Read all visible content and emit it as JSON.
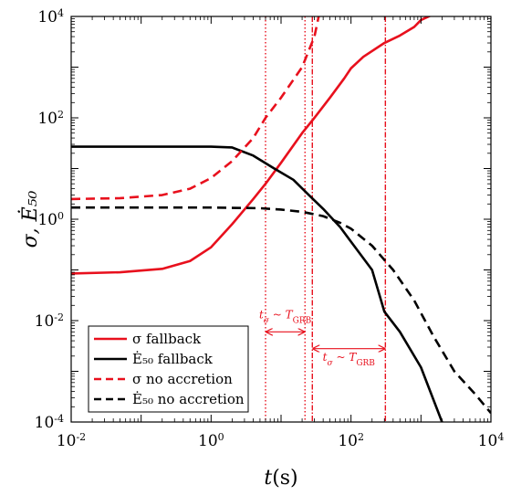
{
  "chart_data": {
    "type": "line",
    "title": "",
    "xlabel": "t(s)",
    "ylabel": "σ, Ė₅₀",
    "x_scale": "log",
    "y_scale": "log",
    "xlim": [
      0.01,
      10000
    ],
    "ylim": [
      0.0001,
      10000
    ],
    "grid": false,
    "legend_position": "bottom-left",
    "x_ticks": [
      {
        "value": 0.01,
        "base": "10",
        "exp": "-2"
      },
      {
        "value": 1,
        "base": "10",
        "exp": "0"
      },
      {
        "value": 100,
        "base": "10",
        "exp": "2"
      },
      {
        "value": 10000,
        "base": "10",
        "exp": "4"
      }
    ],
    "y_ticks": [
      {
        "value": 0.0001,
        "base": "10",
        "exp": "-4"
      },
      {
        "value": 0.01,
        "base": "10",
        "exp": "-2"
      },
      {
        "value": 1,
        "base": "10",
        "exp": "0"
      },
      {
        "value": 100,
        "base": "10",
        "exp": "2"
      },
      {
        "value": 10000,
        "base": "10",
        "exp": "4"
      }
    ],
    "series": [
      {
        "name": "σ fallback",
        "color": "#e8101d",
        "dash": "solid",
        "points": [
          [
            0.01,
            0.085
          ],
          [
            0.05,
            0.09
          ],
          [
            0.2,
            0.105
          ],
          [
            0.5,
            0.15
          ],
          [
            1,
            0.28
          ],
          [
            2,
            0.8
          ],
          [
            4,
            2.5
          ],
          [
            6,
            5
          ],
          [
            10,
            13
          ],
          [
            20,
            50
          ],
          [
            30,
            100
          ],
          [
            50,
            250
          ],
          [
            80,
            600
          ],
          [
            100,
            950
          ],
          [
            150,
            1600
          ],
          [
            300,
            3000
          ],
          [
            500,
            4200
          ],
          [
            800,
            6200
          ],
          [
            1000,
            8500
          ],
          [
            1500,
            11000
          ]
        ]
      },
      {
        "name": "Ė₅₀ fallback",
        "color": "#000000",
        "dash": "solid",
        "points": [
          [
            0.01,
            27
          ],
          [
            0.1,
            27
          ],
          [
            1,
            27
          ],
          [
            2,
            26
          ],
          [
            4,
            18
          ],
          [
            8,
            10
          ],
          [
            15,
            6
          ],
          [
            25,
            3
          ],
          [
            40,
            1.6
          ],
          [
            70,
            0.7
          ],
          [
            100,
            0.36
          ],
          [
            200,
            0.1
          ],
          [
            300,
            0.015
          ],
          [
            500,
            0.006
          ],
          [
            1000,
            0.0012
          ],
          [
            2000,
            0.0001
          ]
        ]
      },
      {
        "name": "σ no accretion",
        "color": "#e8101d",
        "dash": "dashed",
        "points": [
          [
            0.01,
            2.5
          ],
          [
            0.05,
            2.6
          ],
          [
            0.2,
            3
          ],
          [
            0.5,
            4
          ],
          [
            1,
            6.5
          ],
          [
            2,
            14
          ],
          [
            4,
            40
          ],
          [
            6,
            100
          ],
          [
            10,
            250
          ],
          [
            20,
            1000
          ],
          [
            30,
            4000
          ],
          [
            35,
            11000
          ]
        ]
      },
      {
        "name": "Ė₅₀ no accretion",
        "color": "#000000",
        "dash": "dashed",
        "points": [
          [
            0.01,
            1.7
          ],
          [
            0.1,
            1.7
          ],
          [
            1,
            1.7
          ],
          [
            5,
            1.65
          ],
          [
            10,
            1.55
          ],
          [
            20,
            1.4
          ],
          [
            40,
            1.15
          ],
          [
            70,
            0.85
          ],
          [
            100,
            0.65
          ],
          [
            200,
            0.3
          ],
          [
            400,
            0.1
          ],
          [
            800,
            0.025
          ],
          [
            1500,
            0.005
          ],
          [
            3000,
            0.001
          ],
          [
            6000,
            0.00035
          ],
          [
            10000,
            0.00015
          ]
        ]
      }
    ],
    "vlines": [
      {
        "x": 6,
        "style": "dotted"
      },
      {
        "x": 22,
        "style": "dotted"
      },
      {
        "x": 28,
        "style": "dashdot"
      },
      {
        "x": 310,
        "style": "dashdot"
      }
    ],
    "annotations": [
      {
        "x1": 6,
        "x2": 22,
        "y": 0.006,
        "label_t": "t",
        "label_sub1": "σ",
        "label_sim": " ~ ",
        "label_T": "T",
        "label_sub2": "GRB",
        "label_y": 0.011
      },
      {
        "x1": 28,
        "x2": 310,
        "y": 0.0028,
        "label_t": "t",
        "label_sub1": "σ",
        "label_sim": " ~ ",
        "label_T": "T",
        "label_sub2": "GRB",
        "label_y": 0.0016
      }
    ],
    "legend": [
      {
        "label": "σ fallback",
        "color": "#e8101d",
        "dash": "solid"
      },
      {
        "label": "Ė₅₀ fallback",
        "color": "#000000",
        "dash": "solid"
      },
      {
        "label": "σ no accretion",
        "color": "#e8101d",
        "dash": "dashed"
      },
      {
        "label": "Ė₅₀ no accretion",
        "color": "#000000",
        "dash": "dashed"
      }
    ]
  }
}
